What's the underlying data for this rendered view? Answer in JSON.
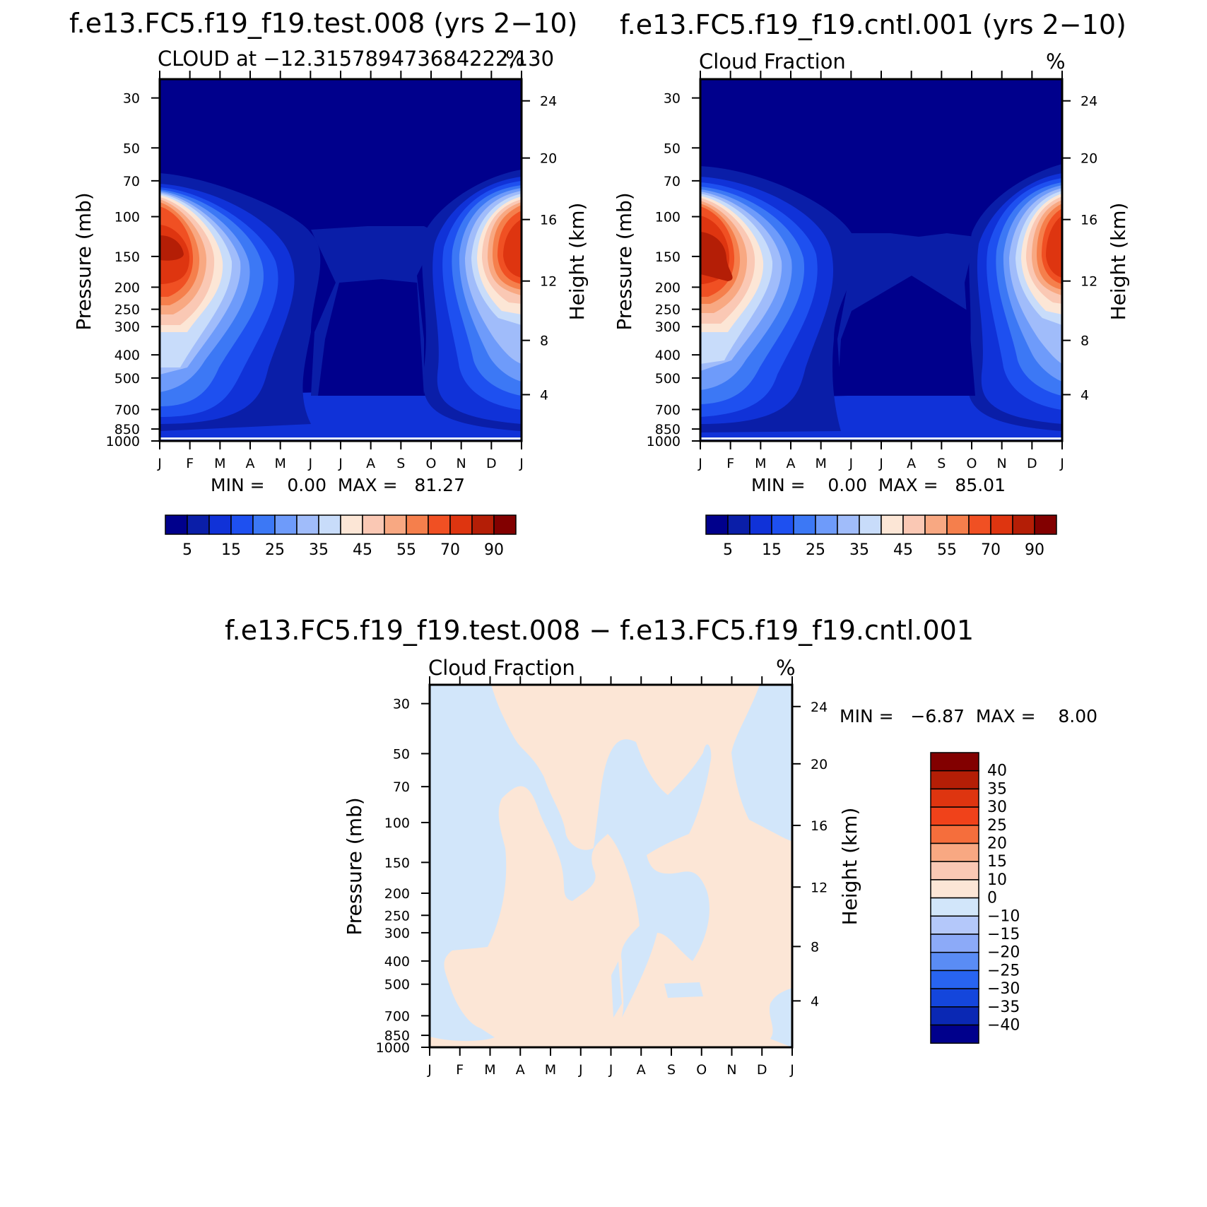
{
  "colors": {
    "panel_palette": [
      "#00008c",
      "#0a1ea8",
      "#1032d8",
      "#1e50f0",
      "#3c78f5",
      "#6e9bfa",
      "#a0bcfa",
      "#c8dcfa",
      "#fce6d6",
      "#fac8b4",
      "#f8a882",
      "#f57f4c",
      "#f05023",
      "#de3510",
      "#b41e06",
      "#820000"
    ],
    "diff_palette": [
      "#820000",
      "#b41e06",
      "#de3510",
      "#f0421a",
      "#f56e3c",
      "#f8a882",
      "#fac8b4",
      "#fce6d6",
      "#d2e6fa",
      "#b4c8fa",
      "#8caaf8",
      "#5a8cf5",
      "#2864f0",
      "#1446dc",
      "#0a28b4",
      "#00008c"
    ]
  },
  "chart_data": [
    {
      "id": "test",
      "type": "heatmap",
      "title": "f.e13.FC5.f19_f19.test.008 (yrs 2−10)",
      "subtitle_left": "CLOUD at −12.315789473684222,130",
      "subtitle_right": "%",
      "ylabel": "Pressure (mb)",
      "ylabel_right": "Height (km)",
      "x_ticks": [
        "J",
        "F",
        "M",
        "A",
        "M",
        "J",
        "J",
        "A",
        "S",
        "O",
        "N",
        "D",
        "J"
      ],
      "y_ticks": [
        "30",
        "50",
        "70",
        "100",
        "150",
        "200",
        "250",
        "300",
        "400",
        "500",
        "700",
        "850",
        "1000"
      ],
      "y_ticks_right": [
        "24",
        "20",
        "16",
        "12",
        "8",
        "4"
      ],
      "stats": "MIN =    0.00  MAX =   81.27",
      "min": 0.0,
      "max": 81.27,
      "colorbar_labels": [
        "5",
        "15",
        "25",
        "35",
        "45",
        "55",
        "70",
        "90"
      ],
      "peak_value": 81.27
    },
    {
      "id": "cntl",
      "type": "heatmap",
      "title": "f.e13.FC5.f19_f19.cntl.001 (yrs 2−10)",
      "subtitle_left": "Cloud Fraction",
      "subtitle_right": "%",
      "ylabel": "Pressure (mb)",
      "ylabel_right": "Height (km)",
      "x_ticks": [
        "J",
        "F",
        "M",
        "A",
        "M",
        "J",
        "J",
        "A",
        "S",
        "O",
        "N",
        "D",
        "J"
      ],
      "y_ticks": [
        "30",
        "50",
        "70",
        "100",
        "150",
        "200",
        "250",
        "300",
        "400",
        "500",
        "700",
        "850",
        "1000"
      ],
      "y_ticks_right": [
        "24",
        "20",
        "16",
        "12",
        "8",
        "4"
      ],
      "stats": "MIN =    0.00  MAX =   85.01",
      "min": 0.0,
      "max": 85.01,
      "colorbar_labels": [
        "5",
        "15",
        "25",
        "35",
        "45",
        "55",
        "70",
        "90"
      ],
      "peak_value": 85.01
    },
    {
      "id": "diff",
      "type": "heatmap",
      "title": "f.e13.FC5.f19_f19.test.008 − f.e13.FC5.f19_f19.cntl.001",
      "subtitle_left": "Cloud Fraction",
      "subtitle_right": "%",
      "ylabel": "Pressure (mb)",
      "ylabel_right": "Height (km)",
      "x_ticks": [
        "J",
        "F",
        "M",
        "A",
        "M",
        "J",
        "J",
        "A",
        "S",
        "O",
        "N",
        "D",
        "J"
      ],
      "y_ticks": [
        "30",
        "50",
        "70",
        "100",
        "150",
        "200",
        "250",
        "300",
        "400",
        "500",
        "700",
        "850",
        "1000"
      ],
      "y_ticks_right": [
        "24",
        "20",
        "16",
        "12",
        "8",
        "4"
      ],
      "stats": "MIN =   −6.87  MAX =    8.00",
      "min": -6.87,
      "max": 8.0,
      "colorbar_labels": [
        "40",
        "35",
        "30",
        "25",
        "20",
        "15",
        "10",
        "0",
        "−10",
        "−15",
        "−20",
        "−25",
        "−30",
        "−35",
        "−40"
      ]
    }
  ]
}
